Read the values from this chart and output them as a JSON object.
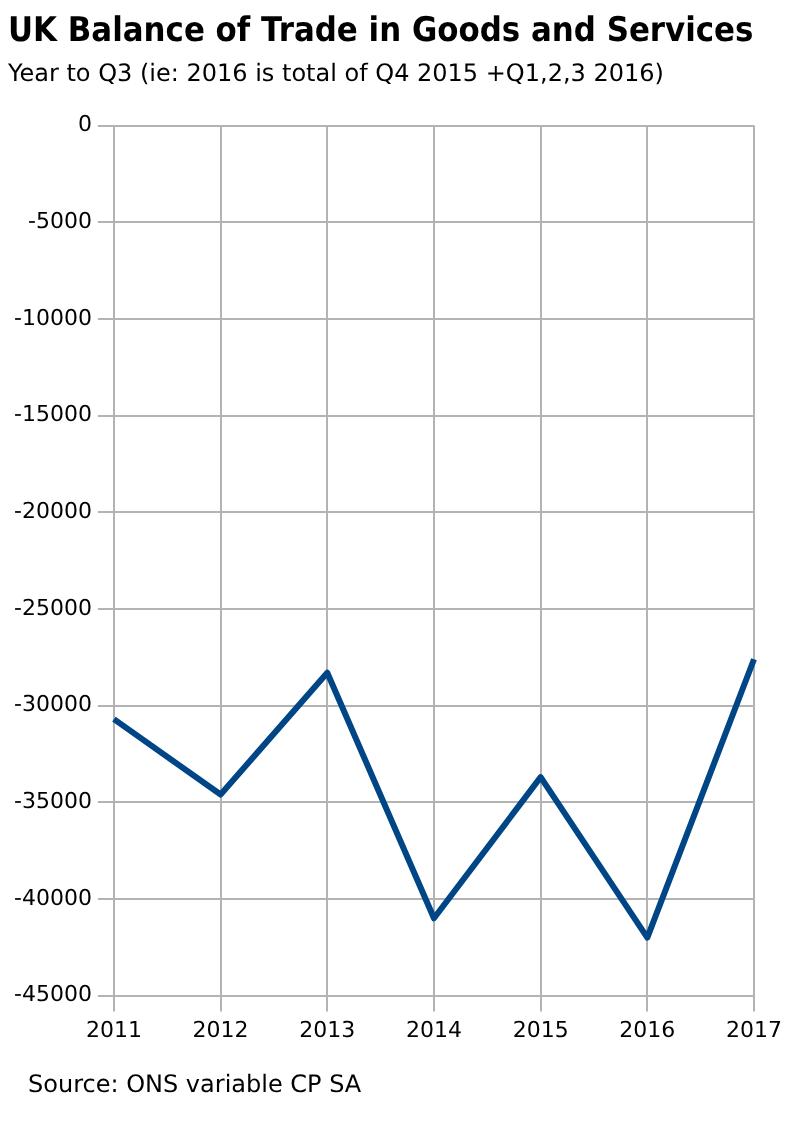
{
  "chart_data": {
    "type": "line",
    "title": "UK Balance of Trade in Goods and Services",
    "subtitle": "Year to Q3 (ie: 2016 is total of Q4 2015 +Q1,2,3 2016)",
    "categories": [
      "2011",
      "2012",
      "2013",
      "2014",
      "2015",
      "2016",
      "2017"
    ],
    "series": [
      {
        "color": "#004586",
        "values": [
          -30700,
          -34600,
          -28300,
          -41000,
          -33700,
          -42000,
          -27600
        ]
      }
    ],
    "ylim": [
      -45000,
      0
    ],
    "yticks": [
      -45000,
      -40000,
      -35000,
      -30000,
      -25000,
      -20000,
      -15000,
      -10000,
      -5000,
      0
    ],
    "grid": true,
    "legend": false,
    "marker": "none",
    "line_style": "solid",
    "annotations": [
      "Source: ONS variable CP SA"
    ]
  }
}
